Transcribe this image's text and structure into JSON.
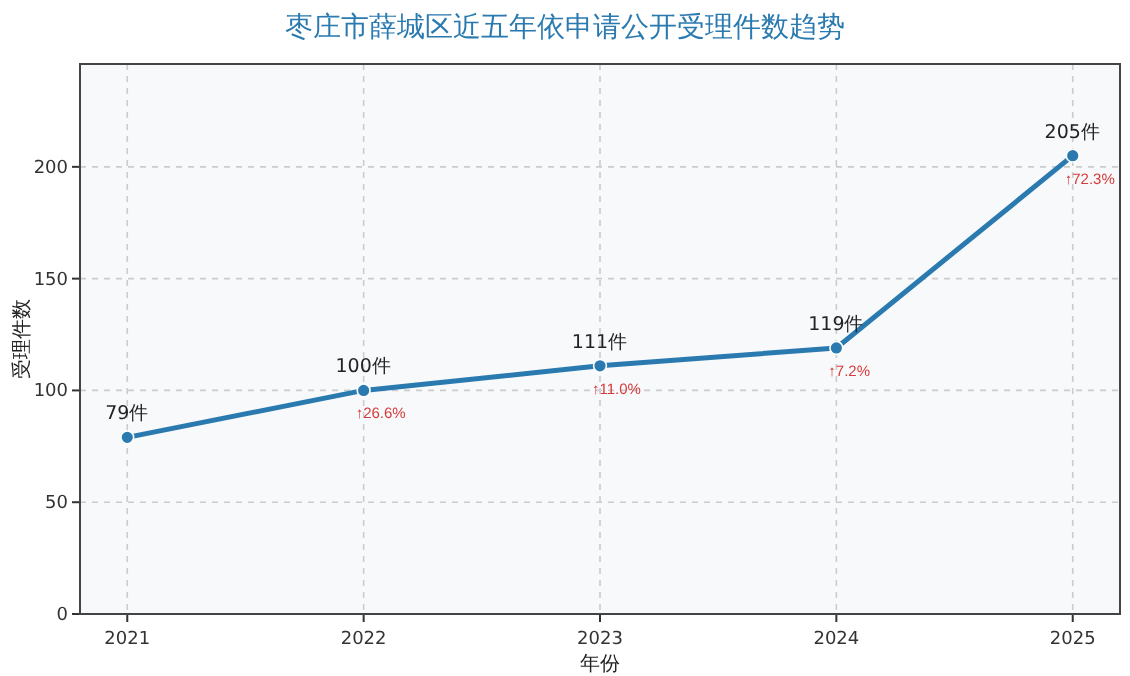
{
  "chart_data": {
    "type": "line",
    "title": "枣庄市薛城区近五年依申请公开受理件数趋势",
    "xlabel": "年份",
    "ylabel": "受理件数",
    "x": [
      2021,
      2022,
      2023,
      2024,
      2025
    ],
    "series": [
      {
        "color": "#2a7ab0",
        "values": [
          79,
          100,
          111,
          119,
          205
        ],
        "value_labels": [
          "79件",
          "100件",
          "111件",
          "119件",
          "205件"
        ]
      }
    ],
    "annotations": [
      {
        "text": "↑26.6%",
        "x": 2022,
        "y": 100
      },
      {
        "text": "↑11.0%",
        "x": 2023,
        "y": 111
      },
      {
        "text": "↑7.2%",
        "x": 2024,
        "y": 119
      },
      {
        "text": "↑72.3%",
        "x": 2025,
        "y": 205
      }
    ],
    "xlim": [
      2020.8,
      2025.2
    ],
    "xticks": [
      2021,
      2022,
      2023,
      2024,
      2025
    ],
    "ylim": [
      0,
      246
    ],
    "yticks": [
      0,
      50,
      100,
      150,
      200
    ],
    "grid": true,
    "marker": "circle",
    "line_style": "solid"
  }
}
